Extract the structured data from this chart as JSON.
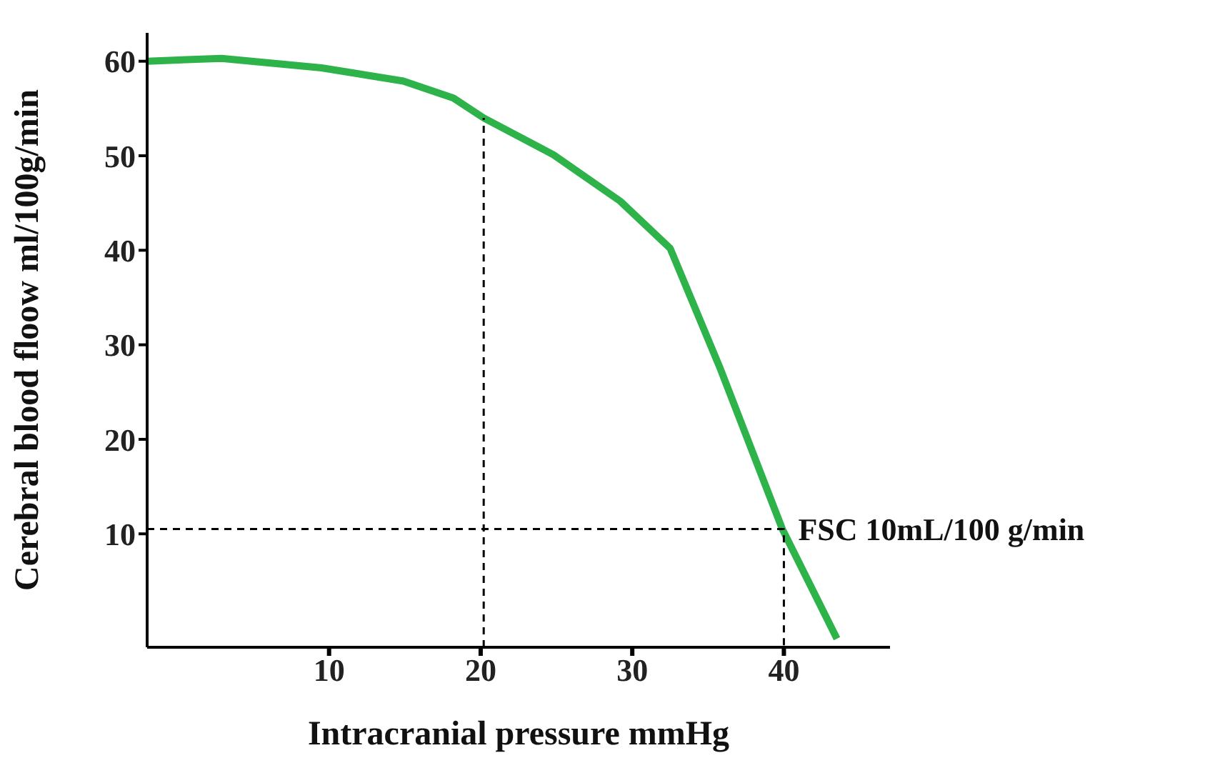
{
  "chart_data": {
    "type": "line",
    "xlabel": "Intracranial pressure mmHg",
    "ylabel": "Cerebral blood floow ml/100g/min",
    "xlim": [
      -2,
      47
    ],
    "xticks": [
      10,
      20,
      30,
      40
    ],
    "ylim": [
      -2,
      63
    ],
    "yticks": [
      10,
      20,
      30,
      40,
      50,
      60
    ],
    "marker": "none",
    "series": [
      {
        "color": "#2db34a",
        "x": [
          -2,
          2.9,
          9.5,
          14.9,
          18.2,
          20.2,
          24.8,
          29.2,
          32.5,
          35.8,
          39.9,
          43.5
        ],
        "values": [
          60,
          60.3,
          59.3,
          57.9,
          56.1,
          54,
          50.1,
          45.2,
          40.2,
          27.5,
          10.5,
          -1.1
        ],
        "line_style": "solid"
      },
      {
        "color": "#000000",
        "x": [
          20.2,
          20.2
        ],
        "values": [
          -2,
          54
        ],
        "line_style": "dashed"
      },
      {
        "color": "#000000",
        "x": [
          -2,
          40,
          40
        ],
        "values": [
          10.5,
          10.5,
          -2
        ],
        "line_style": "dashed"
      }
    ],
    "annotations": [
      {
        "text": "FSC 10mL/100 g/min",
        "x": 40,
        "y": 10.5
      }
    ]
  }
}
